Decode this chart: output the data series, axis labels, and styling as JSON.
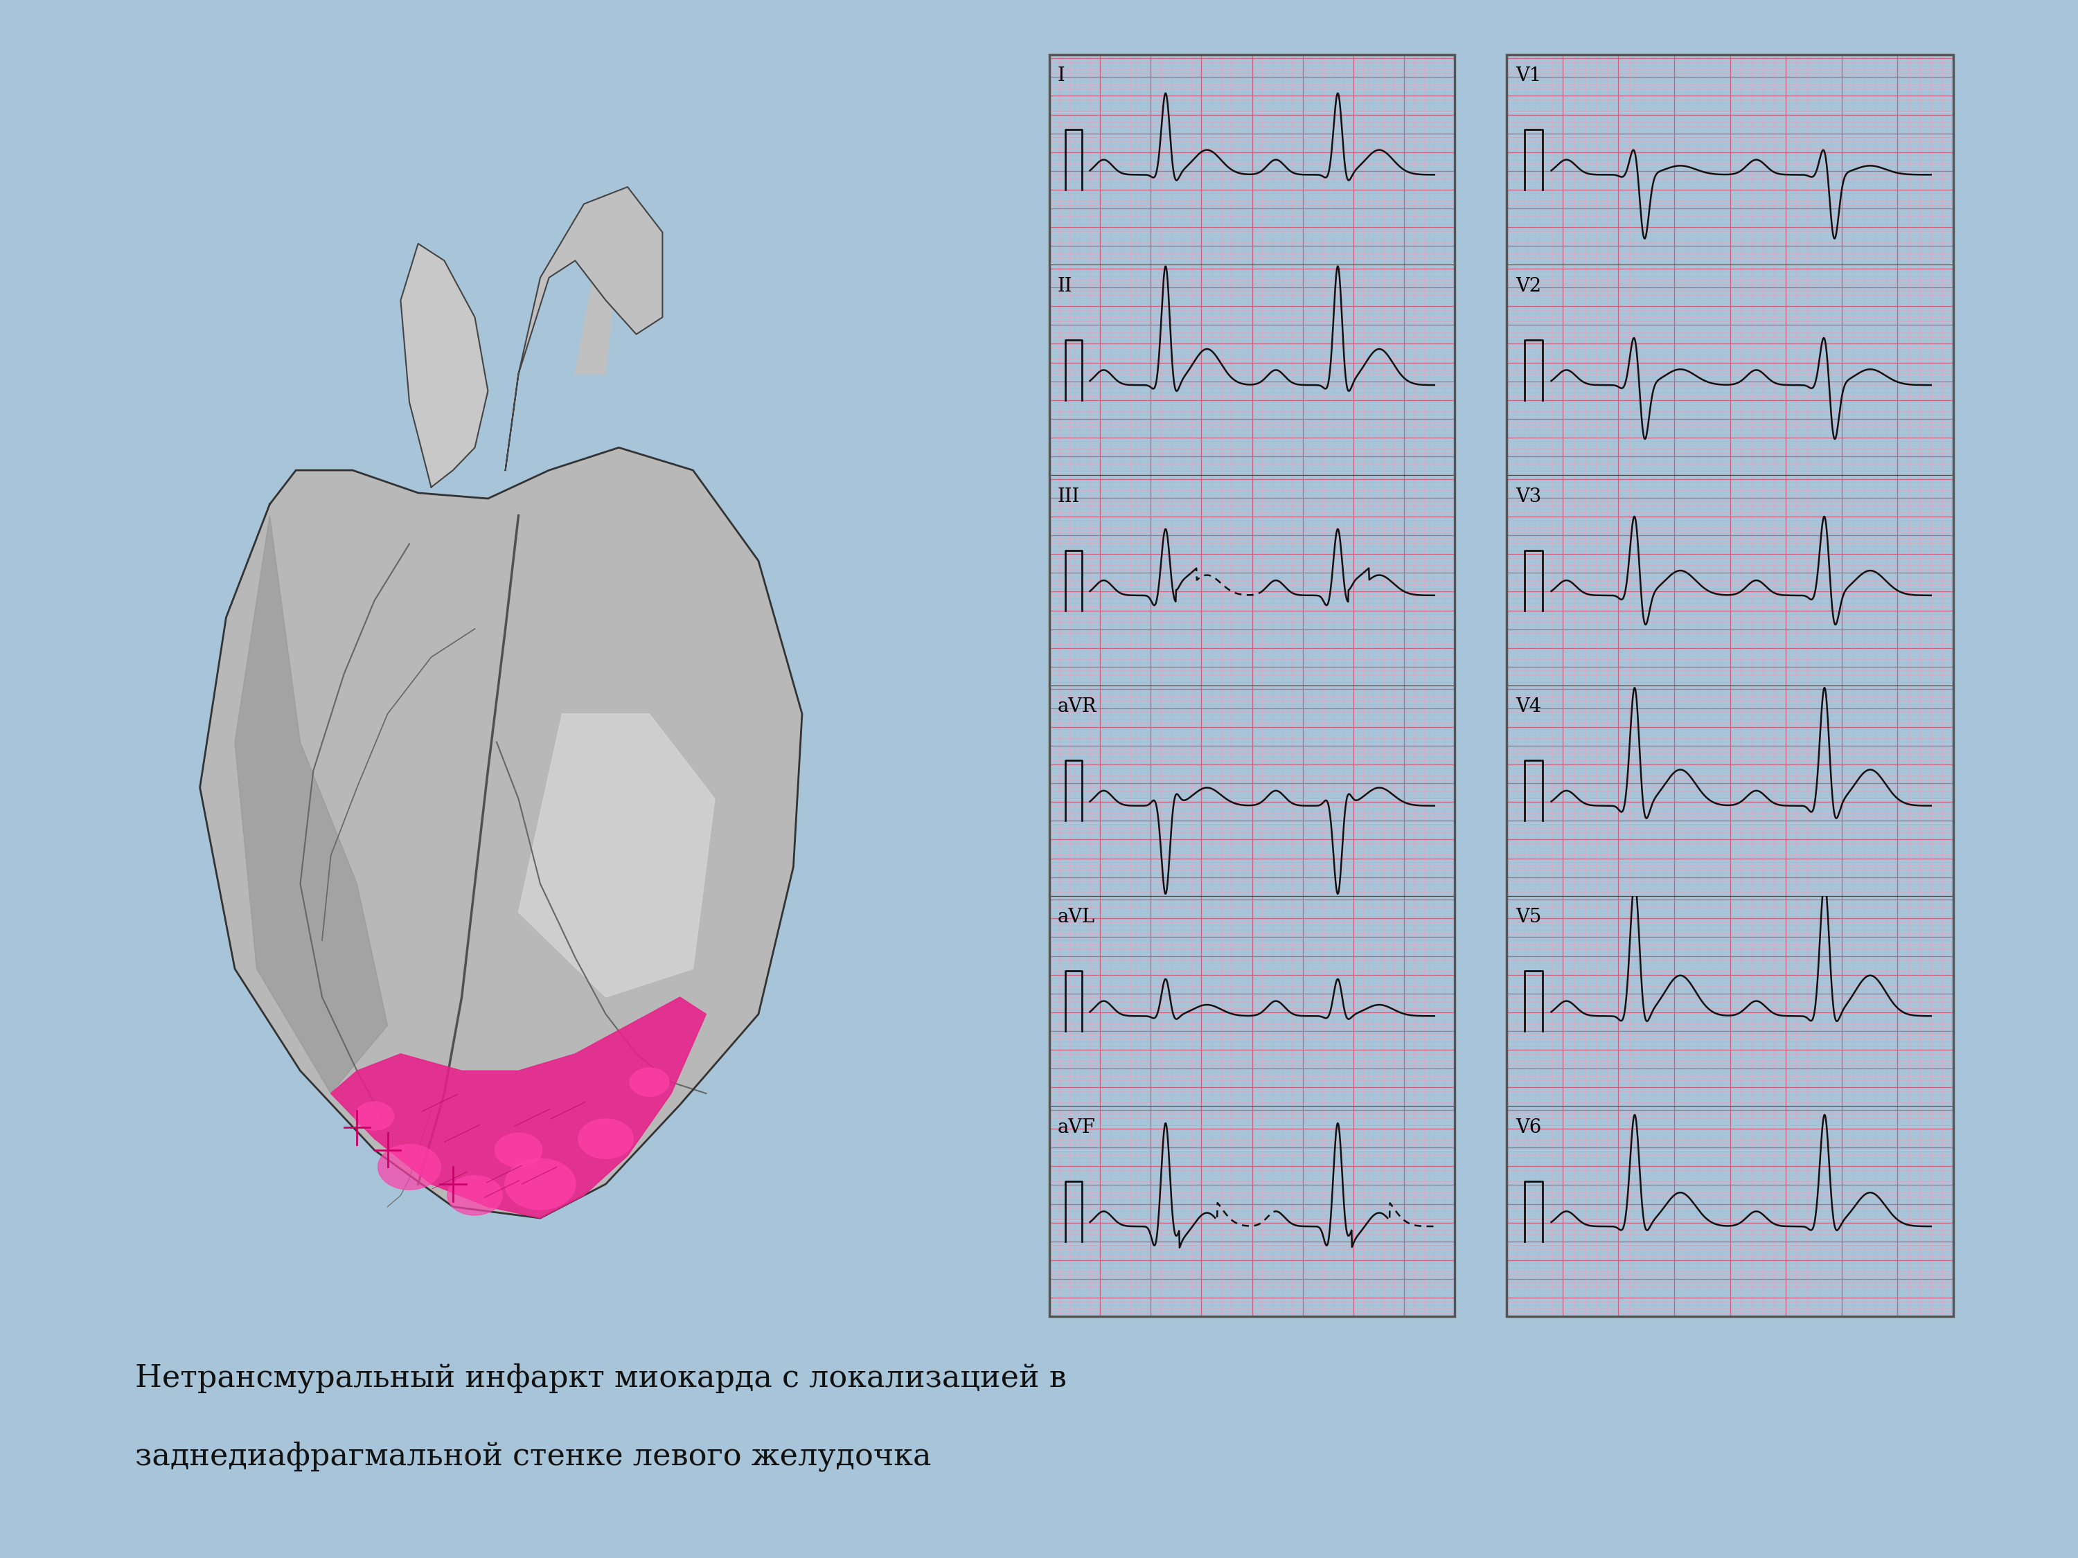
{
  "bg_color": "#a8c4d8",
  "slide_bg": "#f0f0f0",
  "ecg_bg_light": "#f8c8d8",
  "ecg_bg_dark": "#f0a8c0",
  "ecg_grid_major": "#d06080",
  "ecg_grid_minor": "#e8a0b8",
  "ecg_line_color": "#151010",
  "caption_line1": "Нетрансмуральный инфаркт миокарда с локализацией в",
  "caption_line2": "заднедиафрагмальной стенке левого желудочка",
  "leads_left": [
    "I",
    "II",
    "III",
    "aVR",
    "aVL",
    "aVF"
  ],
  "leads_right": [
    "V1",
    "V2",
    "V3",
    "V4",
    "V5",
    "V6"
  ],
  "caption_fontsize": 32,
  "lead_fontsize": 28
}
